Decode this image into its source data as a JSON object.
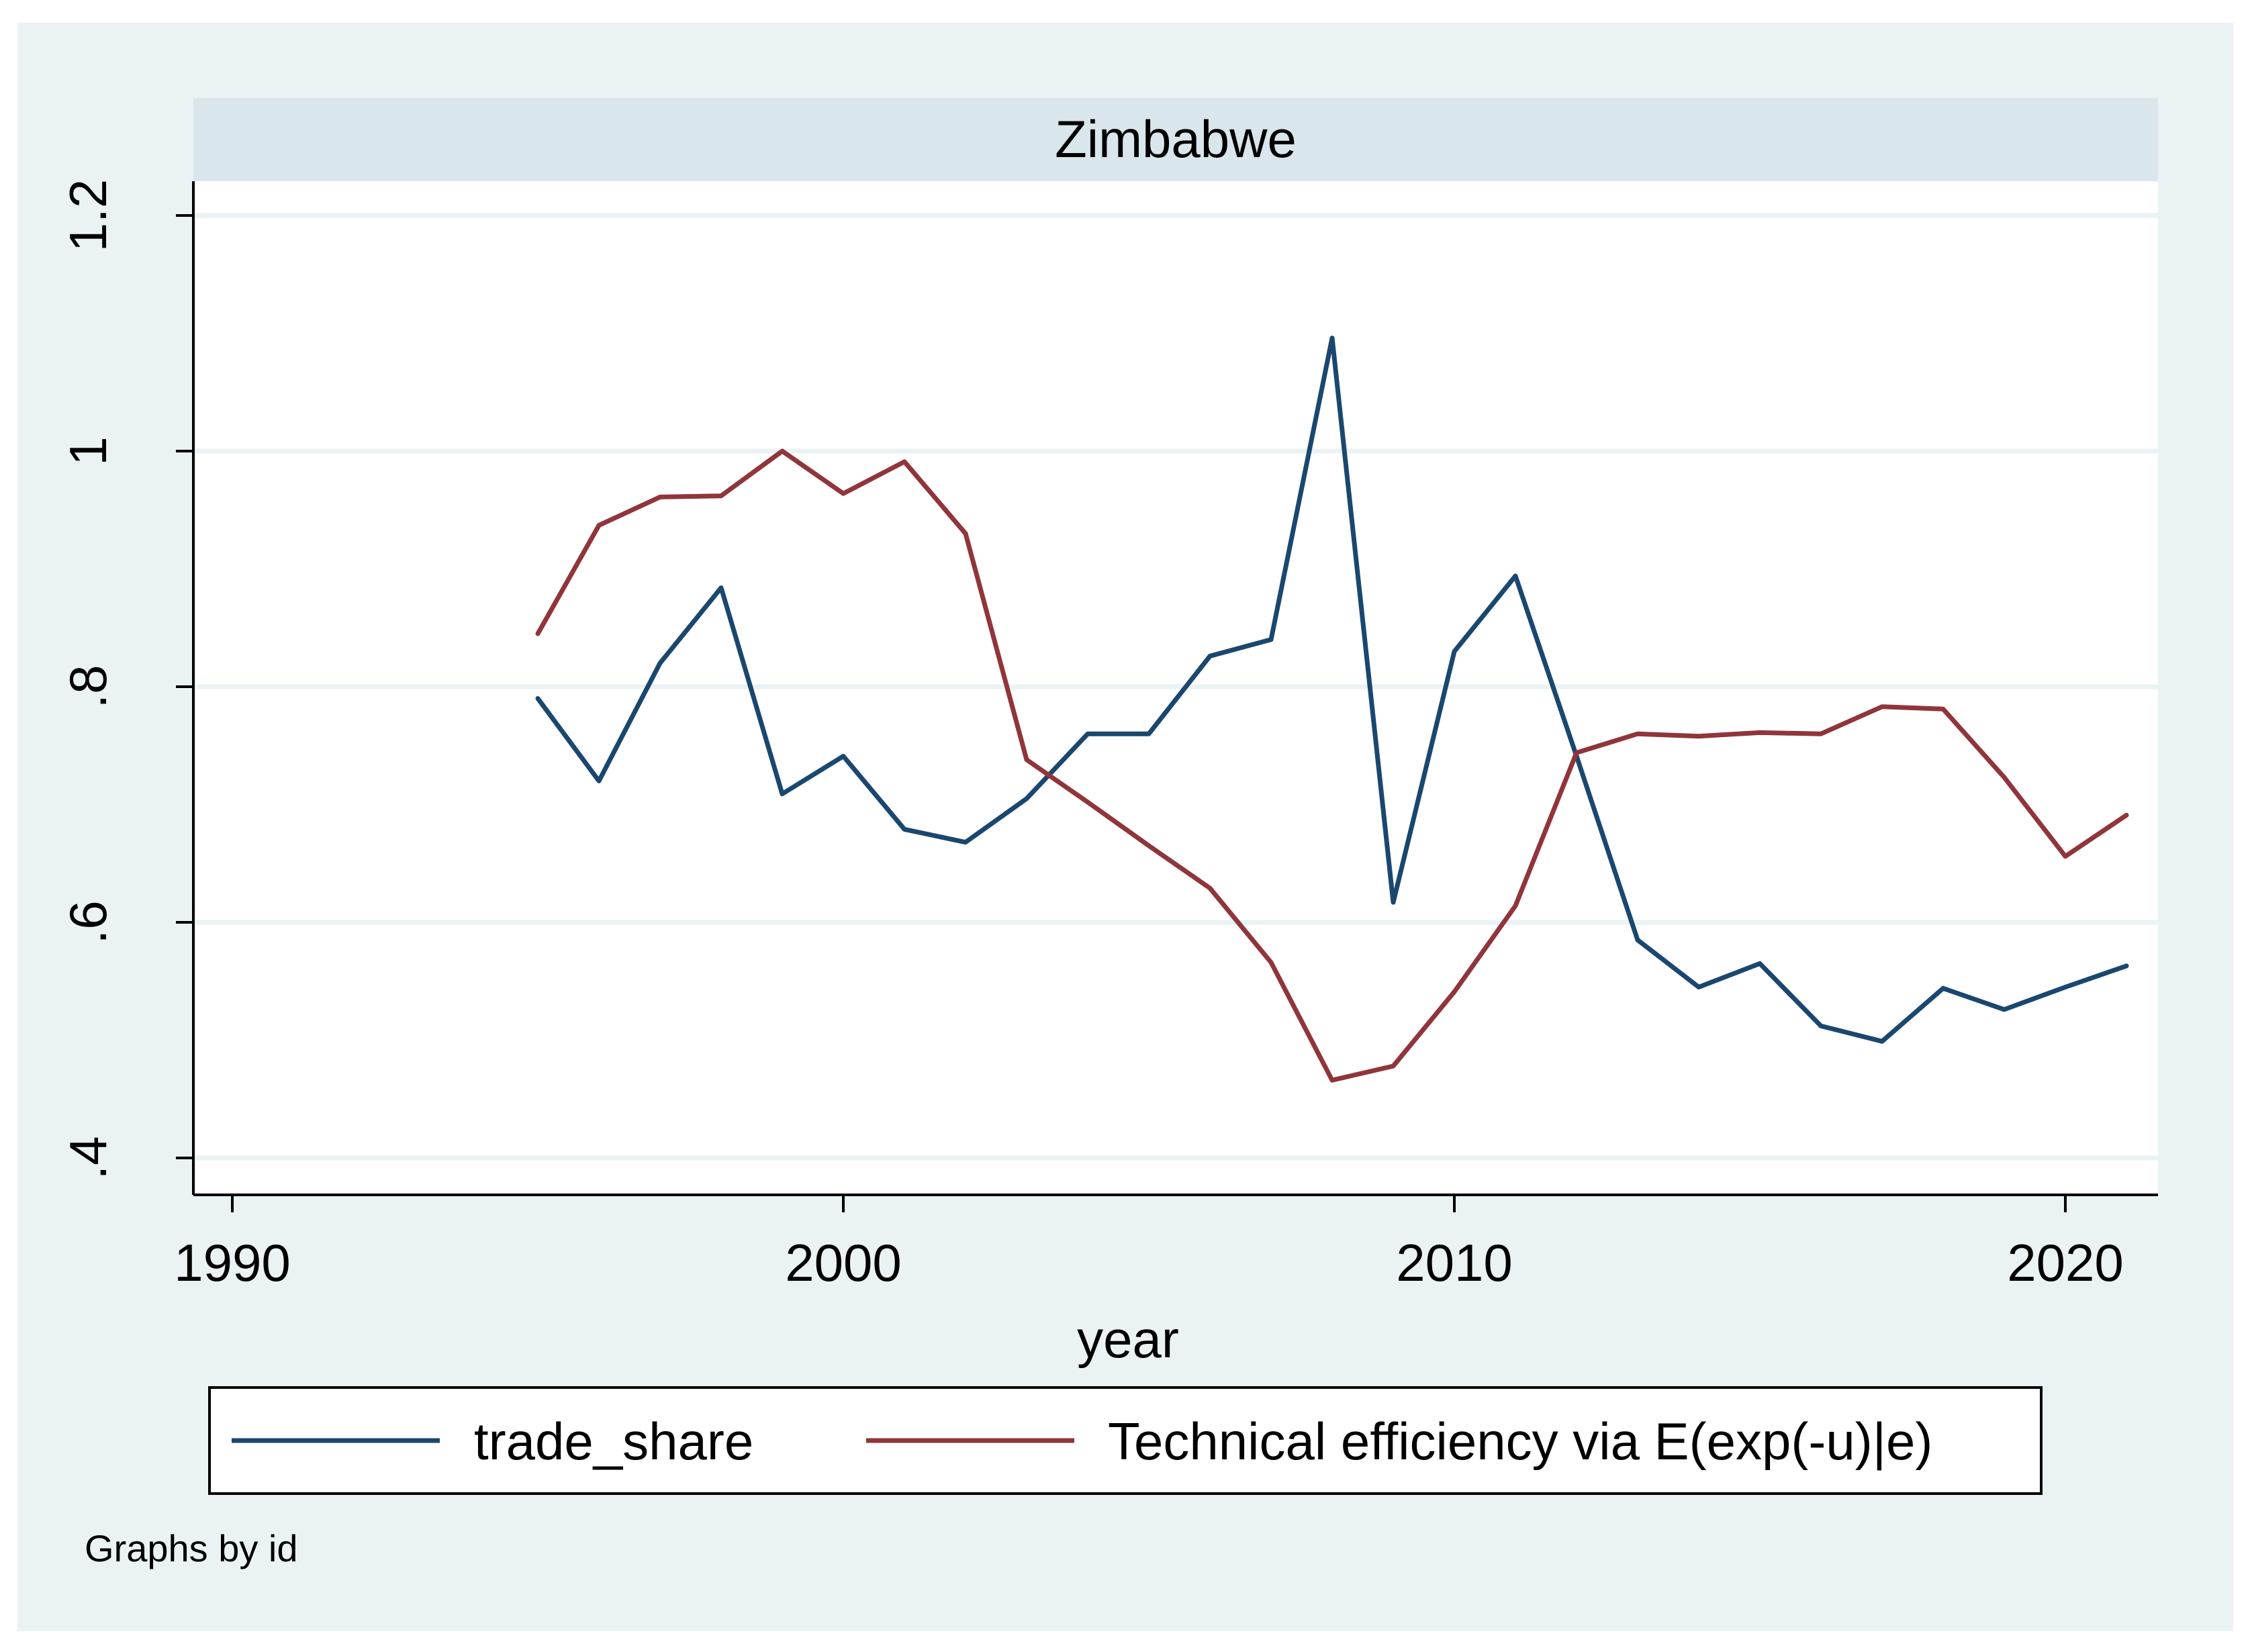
{
  "chart_data": {
    "type": "line",
    "title": "Zimbabwe",
    "xlabel": "year",
    "ylabel": "",
    "xlim": [
      1989.4,
      2021.6
    ],
    "ylim": [
      0.37,
      1.23
    ],
    "xticks": [
      1990,
      2000,
      2010,
      2020
    ],
    "xtick_labels": [
      "1990",
      "2000",
      "2010",
      "2020"
    ],
    "yticks": [
      0.4,
      0.6,
      0.8,
      1.0,
      1.2
    ],
    "ytick_labels": [
      ".4",
      ".6",
      ".8",
      "1",
      "1.2"
    ],
    "grid": true,
    "legend_position": "bottom",
    "note": "Graphs by id",
    "x": [
      1995,
      1996,
      1997,
      1998,
      1999,
      2000,
      2001,
      2002,
      2003,
      2004,
      2005,
      2006,
      2007,
      2008,
      2009,
      2010,
      2011,
      2012,
      2013,
      2014,
      2015,
      2016,
      2017,
      2018,
      2019,
      2020,
      2021
    ],
    "series": [
      {
        "name": "trade_share",
        "color": "#1a476f",
        "values": [
          0.79,
          0.72,
          0.82,
          0.884,
          0.709,
          0.741,
          0.679,
          0.668,
          0.705,
          0.76,
          0.76,
          0.826,
          0.84,
          1.096,
          0.617,
          0.83,
          0.894,
          0.741,
          0.585,
          0.545,
          0.565,
          0.512,
          0.499,
          0.544,
          0.526,
          0.545,
          0.563
        ]
      },
      {
        "name": "Technical efficiency via E(exp(-u)|e)",
        "color": "#90353b",
        "values": [
          0.845,
          0.937,
          0.961,
          0.962,
          1.0,
          0.964,
          0.991,
          0.93,
          0.738,
          0.702,
          0.665,
          0.629,
          0.566,
          0.466,
          0.478,
          0.541,
          0.614,
          0.744,
          0.76,
          0.758,
          0.761,
          0.76,
          0.783,
          0.781,
          0.723,
          0.656,
          0.691
        ]
      }
    ]
  }
}
